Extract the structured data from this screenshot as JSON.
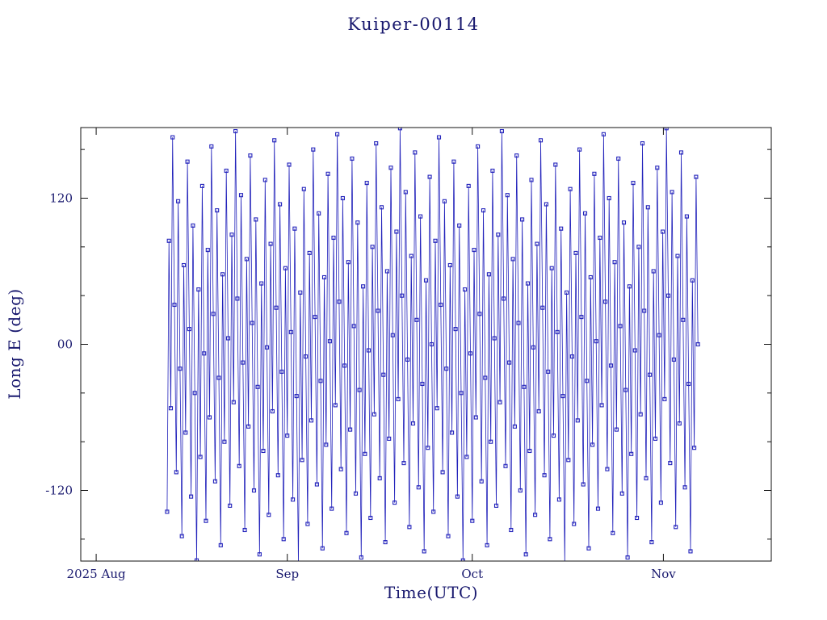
{
  "figure": {
    "title": "Kuiper-00114",
    "xlabel": "Time(UTC)",
    "ylabel": "Long E (deg)"
  },
  "colors": {
    "background": "#ffffff",
    "text": "#18186e",
    "axis": "#111111",
    "data": "#2222bb"
  },
  "chart_data": {
    "type": "line",
    "title": "Kuiper-00114",
    "xlabel": "Time(UTC)",
    "ylabel": "Long E (deg)",
    "grid": false,
    "legend": null,
    "marker": "open-square",
    "x_unit": "days since 2025-08-01 UTC",
    "y_unit": "degrees East longitude",
    "xlim": [
      -2.5,
      109.5
    ],
    "ylim": [
      -178,
      178
    ],
    "x_ticks": [
      {
        "value": 0,
        "label": "2025 Aug"
      },
      {
        "value": 31,
        "label": "Sep"
      },
      {
        "value": 61,
        "label": "Oct"
      },
      {
        "value": 92,
        "label": "Nov"
      }
    ],
    "y_ticks": [
      {
        "value": 120,
        "label": "120"
      },
      {
        "value": 0,
        "label": "00"
      },
      {
        "value": -120,
        "label": "-120"
      }
    ],
    "y_minor_ticks": [
      -160,
      -80,
      -40,
      40,
      80,
      160
    ],
    "points_encoding": "t[i] = t0 + i*dt (days since 2025-08-01 UTC); longitude[i] = lons[i] (deg E), plotted wrapped to +/-180 with connecting lines",
    "series": [
      {
        "name": "Kuiper-00114 sub-satellite East longitude",
        "t0": 11.5,
        "dt": 0.3,
        "lons": [
          -137.5,
          85,
          -52.5,
          170,
          32.5,
          -105,
          117.5,
          -20,
          -157.5,
          65,
          -72.5,
          150,
          12.5,
          -125,
          97.5,
          -40,
          -177.5,
          45,
          -92.5,
          130,
          -7.5,
          -145,
          77.5,
          -60,
          162.5,
          25,
          -112.5,
          110,
          -27.5,
          -165,
          57.5,
          -80,
          142.5,
          5,
          -132.5,
          90,
          -47.5,
          175,
          37.5,
          -100,
          122.5,
          -15,
          -152.5,
          70,
          -67.5,
          155,
          17.5,
          -120,
          102.5,
          -35,
          -172.5,
          50,
          -87.5,
          135,
          -2.5,
          -140,
          82.5,
          -55,
          167.5,
          30,
          -107.5,
          115,
          -22.5,
          -160,
          62.5,
          -75,
          147.5,
          10,
          -127.5,
          95,
          -42.5,
          -180,
          42.5,
          -95,
          127.5,
          -10,
          -147.5,
          75,
          -62.5,
          160,
          22.5,
          -115,
          107.5,
          -30,
          -167.5,
          55,
          -82.5,
          140,
          2.5,
          -135,
          87.5,
          -50,
          172.5,
          35,
          -102.5,
          120,
          -17.5,
          -155,
          67.5,
          -70,
          152.5,
          15,
          -122.5,
          100,
          -37.5,
          -175,
          47.5,
          -90,
          132.5,
          -5,
          -142.5,
          80,
          -57.5,
          165,
          27.5,
          -110,
          112.5,
          -25,
          -162.5,
          60,
          -77.5,
          145,
          7.5,
          -130,
          92.5,
          -45,
          177.5,
          40,
          -97.5,
          125,
          -12.5,
          -150,
          72.5,
          -65,
          157.5,
          20,
          -117.5,
          105,
          -32.5,
          -170,
          52.5,
          -85,
          137.5,
          0,
          -137.5,
          85,
          -52.5,
          170,
          32.5,
          -105,
          117.5,
          -20,
          -157.5,
          65,
          -72.5,
          150,
          12.5,
          -125,
          97.5,
          -40,
          -177.5,
          45,
          -92.5,
          130,
          -7.5,
          -145,
          77.5,
          -60,
          162.5,
          25,
          -112.5,
          110,
          -27.5,
          -165,
          57.5,
          -80,
          142.5,
          5,
          -132.5,
          90,
          -47.5,
          175,
          37.5,
          -100,
          122.5,
          -15,
          -152.5,
          70,
          -67.5,
          155,
          17.5,
          -120,
          102.5,
          -35,
          -172.5,
          50,
          -87.5,
          135,
          -2.5,
          -140,
          82.5,
          -55,
          167.5,
          30,
          -107.5,
          115,
          -22.5,
          -160,
          62.5,
          -75,
          147.5,
          10,
          -127.5,
          95,
          -42.5,
          -180,
          42.5,
          -95,
          127.5,
          -10,
          -147.5,
          75,
          -62.5,
          160,
          22.5,
          -115,
          107.5,
          -30,
          -167.5,
          55,
          -82.5,
          140,
          2.5,
          -135,
          87.5,
          -50,
          172.5,
          35,
          -102.5,
          120,
          -17.5,
          -155,
          67.5,
          -70,
          152.5,
          15,
          -122.5,
          100,
          -37.5,
          -175,
          47.5,
          -90,
          132.5,
          -5,
          -142.5,
          80,
          -57.5,
          165,
          27.5,
          -110,
          112.5,
          -25,
          -162.5,
          60,
          -77.5,
          145,
          7.5,
          -130,
          92.5,
          -45,
          177.5,
          40,
          -97.5,
          125,
          -12.5,
          -150,
          72.5,
          -65,
          157.5,
          20,
          -117.5,
          105,
          -32.5,
          -170,
          52.5,
          -85,
          137.5,
          0
        ]
      }
    ]
  }
}
